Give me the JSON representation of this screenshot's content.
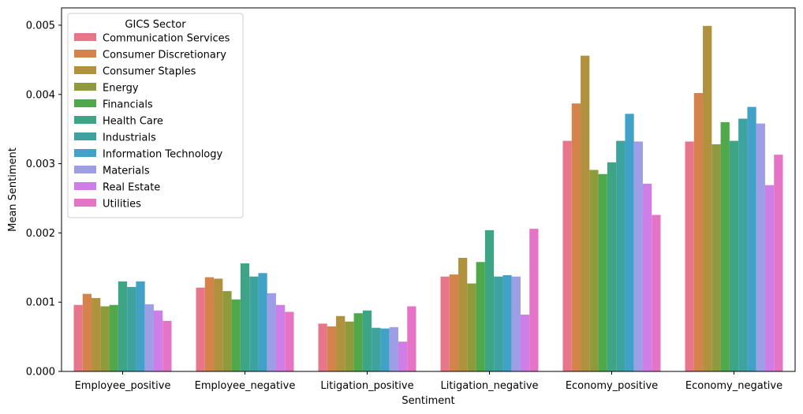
{
  "chart_data": {
    "type": "bar",
    "xlabel": "Sentiment",
    "ylabel": "Mean Sentiment",
    "ylim": [
      0,
      0.00525
    ],
    "yticks": [
      "0.000",
      "0.001",
      "0.002",
      "0.003",
      "0.004",
      "0.005"
    ],
    "ytick_values": [
      0,
      0.001,
      0.002,
      0.003,
      0.004,
      0.005
    ],
    "grid": false,
    "categories": [
      "Employee_positive",
      "Employee_negative",
      "Litigation_positive",
      "Litigation_negative",
      "Economy_positive",
      "Economy_negative"
    ],
    "legend": {
      "title": "GICS Sector",
      "placement": "top-left"
    },
    "series": [
      {
        "name": "Communication Services",
        "color": "#e8768a",
        "values": [
          0.00096,
          0.00121,
          0.00069,
          0.00137,
          0.00333,
          0.00332
        ]
      },
      {
        "name": "Consumer Discretionary",
        "color": "#d4834a",
        "values": [
          0.00112,
          0.00136,
          0.00065,
          0.0014,
          0.00387,
          0.00402
        ]
      },
      {
        "name": "Consumer Staples",
        "color": "#b0913e",
        "values": [
          0.00106,
          0.00134,
          0.0008,
          0.00164,
          0.00456,
          0.00499
        ]
      },
      {
        "name": "Energy",
        "color": "#8f9a3d",
        "values": [
          0.00094,
          0.00116,
          0.00072,
          0.00127,
          0.00291,
          0.00328
        ]
      },
      {
        "name": "Financials",
        "color": "#4fa94a",
        "values": [
          0.00096,
          0.00104,
          0.00084,
          0.00158,
          0.00285,
          0.0036
        ]
      },
      {
        "name": "Health Care",
        "color": "#3da585",
        "values": [
          0.0013,
          0.00156,
          0.00088,
          0.00204,
          0.00302,
          0.00333
        ]
      },
      {
        "name": "Industrials",
        "color": "#3ea29e",
        "values": [
          0.00122,
          0.00137,
          0.00063,
          0.00137,
          0.00333,
          0.00365
        ]
      },
      {
        "name": "Information Technology",
        "color": "#42a1c7",
        "values": [
          0.0013,
          0.00142,
          0.00062,
          0.00139,
          0.00372,
          0.00382
        ]
      },
      {
        "name": "Materials",
        "color": "#9e9ee6",
        "values": [
          0.00097,
          0.00113,
          0.00064,
          0.00137,
          0.00332,
          0.00358
        ]
      },
      {
        "name": "Real Estate",
        "color": "#cf7ee8",
        "values": [
          0.00088,
          0.00096,
          0.00043,
          0.00082,
          0.00271,
          0.00269
        ]
      },
      {
        "name": "Utilities",
        "color": "#e574c6",
        "values": [
          0.00073,
          0.00086,
          0.00094,
          0.00206,
          0.00226,
          0.00313
        ]
      }
    ]
  }
}
